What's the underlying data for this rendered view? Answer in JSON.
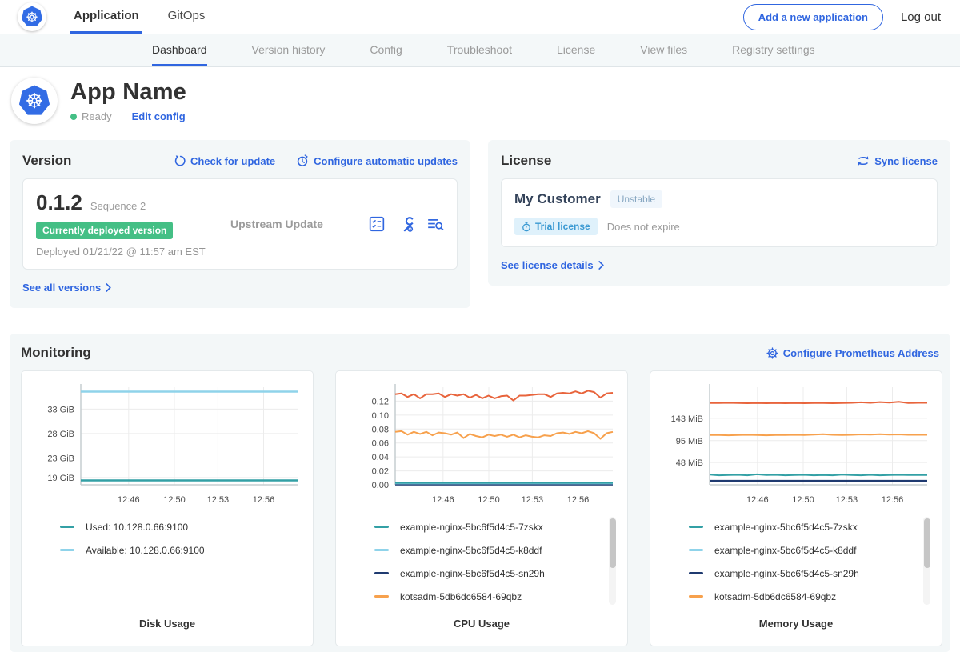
{
  "colors": {
    "accent": "#3066e0",
    "k8s_blue": "#326ce5",
    "success_green": "#44bf85",
    "card_bg": "#f3f7f8",
    "trial_badge_bg": "#dff1fb",
    "trial_badge_text": "#3a99d2",
    "channel_badge_bg": "#f0f6fc",
    "channel_badge_text": "#86a6c1"
  },
  "topnav": {
    "tabs": [
      {
        "label": "Application"
      },
      {
        "label": "GitOps"
      }
    ],
    "add_app_button": "Add a new application",
    "logout": "Log out"
  },
  "subnav": {
    "tabs": [
      "Dashboard",
      "Version history",
      "Config",
      "Troubleshoot",
      "License",
      "View files",
      "Registry settings"
    ],
    "active": "Dashboard"
  },
  "app_header": {
    "title": "App Name",
    "status": "Ready",
    "edit_config": "Edit config"
  },
  "version_card": {
    "title": "Version",
    "check_update": "Check for update",
    "configure_updates": "Configure automatic updates",
    "version_number": "0.1.2",
    "sequence": "Sequence 2",
    "deployed_badge": "Currently deployed version",
    "deployed_at": "Deployed 01/21/22 @ 11:57 am EST",
    "source": "Upstream Update",
    "see_all": "See all versions"
  },
  "license_card": {
    "title": "License",
    "sync": "Sync license",
    "customer": "My Customer",
    "channel": "Unstable",
    "trial_badge": "Trial license",
    "expiry": "Does not expire",
    "details": "See license details"
  },
  "monitoring": {
    "title": "Monitoring",
    "configure": "Configure Prometheus Address"
  },
  "chart_data": {
    "charts": [
      {
        "type": "line",
        "title": "Disk Usage",
        "x_ticks": [
          "12:46",
          "12:50",
          "12:53",
          "12:56"
        ],
        "x_tick_pos": [
          0.22,
          0.43,
          0.63,
          0.84
        ],
        "ylim": [
          17.5,
          37.5
        ],
        "y_ticks": [
          {
            "label": "33 GiB",
            "value": 33
          },
          {
            "label": "28 GiB",
            "value": 28
          },
          {
            "label": "23 GiB",
            "value": 23
          },
          {
            "label": "19 GiB",
            "value": 19
          }
        ],
        "series": [
          {
            "color": "#8fd3ea",
            "width": 2.5,
            "values": [
              36.6,
              36.6
            ]
          },
          {
            "color": "#33a0a5",
            "width": 2.5,
            "values": [
              18.4,
              18.4
            ]
          }
        ],
        "legend": [
          {
            "label": "Used: 10.128.0.66:9100",
            "color": "#33a0a5"
          },
          {
            "label": "Available: 10.128.0.66:9100",
            "color": "#8fd3ea"
          }
        ]
      },
      {
        "type": "line",
        "title": "CPU Usage",
        "x_ticks": [
          "12:46",
          "12:50",
          "12:53",
          "12:56"
        ],
        "x_tick_pos": [
          0.22,
          0.43,
          0.63,
          0.84
        ],
        "ylim": [
          0,
          0.14
        ],
        "y_ticks": [
          {
            "label": "0.12",
            "value": 0.12
          },
          {
            "label": "0.10",
            "value": 0.1
          },
          {
            "label": "0.08",
            "value": 0.08
          },
          {
            "label": "0.06",
            "value": 0.06
          },
          {
            "label": "0.04",
            "value": 0.04
          },
          {
            "label": "0.02",
            "value": 0.02
          },
          {
            "label": "0.00",
            "value": 0.0
          }
        ],
        "series": [
          {
            "color": "#1f3a70",
            "width": 3,
            "values": [
              0.0008,
              0.0008
            ]
          },
          {
            "color": "#8fd3ea",
            "width": 2,
            "values": [
              0.0018,
              0.0018
            ]
          },
          {
            "color": "#33a0a5",
            "width": 2,
            "values": [
              0.0028,
              0.0028
            ]
          },
          {
            "color": "#f7a14d",
            "width": 2,
            "values": [
              0.076,
              0.077,
              0.072,
              0.076,
              0.073,
              0.076,
              0.071,
              0.075,
              0.074,
              0.072,
              0.075,
              0.067,
              0.073,
              0.07,
              0.068,
              0.072,
              0.07,
              0.072,
              0.069,
              0.072,
              0.068,
              0.071,
              0.069,
              0.068,
              0.071,
              0.07,
              0.074,
              0.075,
              0.073,
              0.076,
              0.074,
              0.077,
              0.074,
              0.066,
              0.074,
              0.076
            ]
          },
          {
            "color": "#e8643c",
            "width": 2,
            "values": [
              0.13,
              0.131,
              0.126,
              0.13,
              0.124,
              0.13,
              0.13,
              0.131,
              0.126,
              0.13,
              0.128,
              0.13,
              0.125,
              0.129,
              0.124,
              0.128,
              0.124,
              0.127,
              0.128,
              0.121,
              0.128,
              0.128,
              0.129,
              0.13,
              0.13,
              0.126,
              0.131,
              0.132,
              0.131,
              0.134,
              0.131,
              0.135,
              0.133,
              0.125,
              0.131,
              0.132
            ]
          }
        ],
        "legend": [
          {
            "label": "example-nginx-5bc6f5d4c5-7zskx",
            "color": "#33a0a5"
          },
          {
            "label": "example-nginx-5bc6f5d4c5-k8ddf",
            "color": "#8fd3ea"
          },
          {
            "label": "example-nginx-5bc6f5d4c5-sn29h",
            "color": "#1f3a70"
          },
          {
            "label": "kotsadm-5db6dc6584-69qbz",
            "color": "#f7a14d"
          }
        ]
      },
      {
        "type": "line",
        "title": "Memory Usage",
        "x_ticks": [
          "12:46",
          "12:50",
          "12:53",
          "12:56"
        ],
        "x_tick_pos": [
          0.22,
          0.43,
          0.63,
          0.84
        ],
        "ylim": [
          0,
          210
        ],
        "y_ticks": [
          {
            "label": "143 MiB",
            "value": 143
          },
          {
            "label": "95 MiB",
            "value": 95
          },
          {
            "label": "48 MiB",
            "value": 48
          }
        ],
        "series": [
          {
            "color": "#1f3a70",
            "width": 3,
            "values": [
              8,
              8
            ]
          },
          {
            "color": "#33a0a5",
            "width": 2,
            "values": [
              22,
              20.5,
              21,
              21.5,
              20.5,
              22.5,
              21,
              21.5,
              20.5,
              21,
              21.5,
              20.5,
              21,
              20.5,
              22,
              21,
              20.5,
              21.5,
              20.5,
              21,
              21.5,
              21,
              21,
              21
            ]
          },
          {
            "color": "#f7a14d",
            "width": 2,
            "values": [
              107,
              107,
              106.5,
              107,
              107.5,
              107,
              106.5,
              107,
              107,
              107.5,
              107,
              108,
              109,
              107.5,
              107,
              107.5,
              108.5,
              108,
              109,
              108,
              108.5,
              107.5,
              107.5,
              107.5
            ]
          },
          {
            "color": "#e8643c",
            "width": 2,
            "values": [
              176,
              176,
              176.5,
              176,
              175.5,
              176,
              175.5,
              176,
              175.5,
              176,
              175.5,
              176,
              176,
              175.5,
              176,
              176.5,
              177.5,
              176.5,
              178,
              177,
              178.5,
              176,
              176.5,
              176.5
            ]
          }
        ],
        "legend": [
          {
            "label": "example-nginx-5bc6f5d4c5-7zskx",
            "color": "#33a0a5"
          },
          {
            "label": "example-nginx-5bc6f5d4c5-k8ddf",
            "color": "#8fd3ea"
          },
          {
            "label": "example-nginx-5bc6f5d4c5-sn29h",
            "color": "#1f3a70"
          },
          {
            "label": "kotsadm-5db6dc6584-69qbz",
            "color": "#f7a14d"
          }
        ]
      }
    ]
  }
}
